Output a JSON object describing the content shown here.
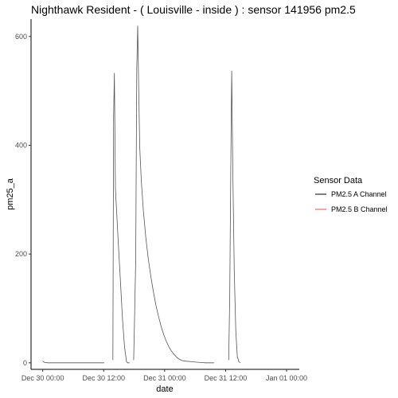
{
  "chart_data": {
    "type": "line",
    "title": "Nighthawk Resident - ( Louisville - inside ) : sensor 141956 pm2.5",
    "xlabel": "date",
    "ylabel": "pm25_a",
    "x_ticks": [
      "Dec 30 00:00",
      "Dec 30 12:00",
      "Dec 31 00:00",
      "Dec 31 12:00",
      "Jan 01 00:00"
    ],
    "x_tick_hours": [
      0,
      12,
      24,
      36,
      48
    ],
    "xlim_hours": [
      -2.3,
      50.5
    ],
    "y_ticks": [
      0,
      200,
      400,
      600
    ],
    "ylim": [
      -12,
      632
    ],
    "grid": false,
    "legend": {
      "title": "Sensor Data",
      "position": "right",
      "entries": [
        {
          "label": "PM2.5 A Channel",
          "color": "#000000"
        },
        {
          "label": "PM2.5 B Channel",
          "color": "#e0523f"
        }
      ]
    },
    "series": [
      {
        "name": "PM2.5 A Channel",
        "color": "#555555",
        "segments": [
          {
            "x_hours": [
              0,
              0.3,
              1,
              5,
              10,
              12.1
            ],
            "y": [
              3,
              1,
              0,
              0,
              0,
              0
            ]
          },
          {
            "x_hours": [
              13.8,
              13.95,
              14.1,
              14.3,
              14.6,
              14.9,
              15.3,
              15.7,
              16.1,
              16.4,
              16.5,
              16.7,
              17.1
            ],
            "y": [
              5,
              450,
              533,
              320,
              268,
              215,
              150,
              80,
              30,
              8,
              2,
              0,
              0
            ]
          },
          {
            "x_hours": [
              17.9,
              18.0,
              18.3,
              18.5,
              18.7,
              18.9,
              19.1,
              19.4,
              19.8,
              20.3,
              20.8,
              21.3,
              21.8,
              22.3,
              22.8,
              23.3,
              23.8,
              24.3,
              24.8,
              25.3,
              25.8,
              26.3,
              26.8,
              27.5,
              28.3,
              29.3,
              30.5,
              32.0,
              33.7
            ],
            "y": [
              5,
              50,
              190,
              540,
              620,
              500,
              395,
              335,
              280,
              230,
              190,
              158,
              130,
              105,
              85,
              67,
              52,
              40,
              30,
              22,
              16,
              11,
              7,
              4,
              3,
              2,
              1,
              0,
              0
            ]
          },
          {
            "x_hours": [
              36.6,
              36.8,
              37.1,
              37.2,
              37.4,
              37.7,
              38.0,
              38.3,
              38.6,
              38.9
            ],
            "y": [
              5,
              120,
              455,
              537,
              360,
              170,
              60,
              12,
              2,
              0
            ]
          }
        ]
      }
    ]
  }
}
